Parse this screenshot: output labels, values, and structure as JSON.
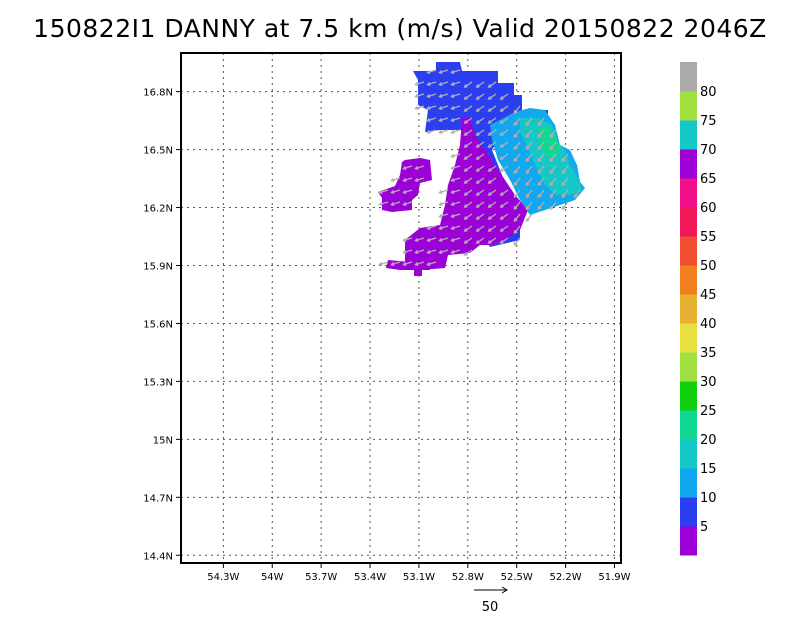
{
  "title": "150822I1 DANNY at 7.5 km (m/s) Valid 20150822 2046Z",
  "map": {
    "lon_ticks": [
      "54.3W",
      "54W",
      "53.7W",
      "53.4W",
      "53.1W",
      "52.8W",
      "52.5W",
      "52.2W",
      "51.9W"
    ],
    "lat_ticks": [
      "16.8N",
      "16.5N",
      "16.2N",
      "15.9N",
      "15.6N",
      "15.3N",
      "15N",
      "14.7N",
      "14.4N"
    ],
    "lon_values": [
      -54.3,
      -54.0,
      -53.7,
      -53.4,
      -53.1,
      -52.8,
      -52.5,
      -52.2,
      -51.9
    ],
    "lat_values": [
      16.8,
      16.5,
      16.2,
      15.9,
      15.6,
      15.3,
      15.0,
      14.7,
      14.4
    ],
    "grid": "dotted",
    "wind_field": {
      "units": "m/s",
      "regions": [
        {
          "speed_class": "10-15",
          "color": "#2b3ff0"
        },
        {
          "speed_class": "5-10",
          "color": "#9b00d6"
        },
        {
          "speed_class": "15-20",
          "color": "#12a8f0"
        },
        {
          "speed_class": "20-25",
          "color": "#14c8c8"
        },
        {
          "speed_class": "25-30",
          "color": "#10d890"
        }
      ]
    }
  },
  "colorbar": {
    "labels": [
      "5",
      "10",
      "15",
      "20",
      "25",
      "30",
      "35",
      "40",
      "45",
      "50",
      "55",
      "60",
      "65",
      "70",
      "75",
      "80"
    ],
    "colors": [
      "#9b00d6",
      "#2b3ff0",
      "#12a8f0",
      "#14c8c8",
      "#10d890",
      "#10d010",
      "#a0e040",
      "#e8e040",
      "#e8b030",
      "#f08020",
      "#f05030",
      "#f01858",
      "#f0108a",
      "#9b00d6",
      "#14c8c8",
      "#a0e040",
      "#aaaaaa"
    ]
  },
  "reference_vector": {
    "label": "50"
  }
}
